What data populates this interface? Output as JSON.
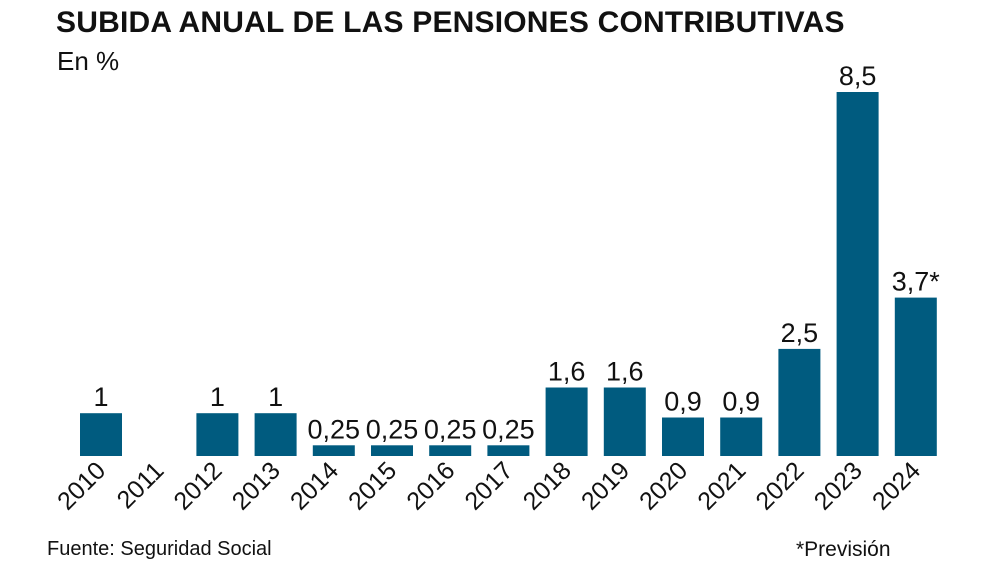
{
  "title": "SUBIDA ANUAL DE LAS PENSIONES CONTRIBUTIVAS",
  "subtitle": "En %",
  "source": "Fuente: Seguridad Social",
  "note": "*Previsión",
  "colors": {
    "bar": "#005b7f",
    "text": "#111111"
  },
  "chart_data": {
    "type": "bar",
    "title": "SUBIDA ANUAL DE LAS PENSIONES CONTRIBUTIVAS",
    "subtitle": "En %",
    "categories": [
      "2010",
      "2011",
      "2012",
      "2013",
      "2014",
      "2015",
      "2016",
      "2017",
      "2018",
      "2019",
      "2020",
      "2021",
      "2022",
      "2023",
      "2024"
    ],
    "values": [
      1,
      null,
      1,
      1,
      0.25,
      0.25,
      0.25,
      0.25,
      1.6,
      1.6,
      0.9,
      0.9,
      2.5,
      8.5,
      3.7
    ],
    "labels": [
      "1",
      "",
      "1",
      "1",
      "0,25",
      "0,25",
      "0,25",
      "0,25",
      "1,6",
      "1,6",
      "0,9",
      "0,9",
      "2,5",
      "8,5",
      "3,7*"
    ],
    "ylim": [
      0,
      8.5
    ],
    "grid": false,
    "legend": "none"
  }
}
